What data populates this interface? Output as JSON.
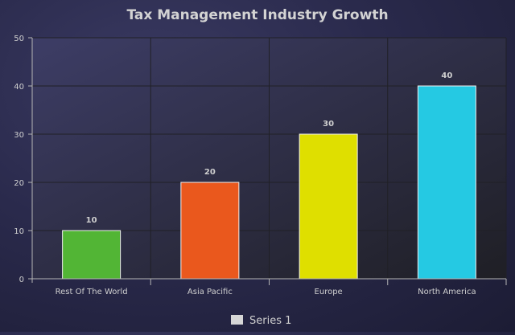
{
  "chart_data": {
    "type": "bar",
    "title": "Tax Management Industry Growth",
    "xlabel": "",
    "ylabel": "",
    "categories": [
      "Rest Of The World",
      "Asia Pacific",
      "Europe",
      "North America"
    ],
    "series": [
      {
        "name": "Series 1",
        "values": [
          10,
          20,
          30,
          40
        ]
      }
    ],
    "ylim": [
      0,
      50
    ],
    "yticks": [
      "0",
      "10",
      "20",
      "30",
      "40",
      "50"
    ],
    "data_labels": [
      "10",
      "20",
      "30",
      "40"
    ],
    "bar_colors": [
      "#52b535",
      "#ea581d",
      "#dfdf00",
      "#25c9e3"
    ],
    "grid": true,
    "legend_position": "bottom"
  },
  "colors": {
    "plot_background_top": "#3d3d66",
    "plot_background_bottom": "#1f1f25",
    "grid_line": "#202026",
    "axis_line": "#b5b5b5",
    "title_text": "#d3d3d3",
    "tick_text": "#cfcfcf",
    "legend_swatch": "#d6d6d6"
  }
}
